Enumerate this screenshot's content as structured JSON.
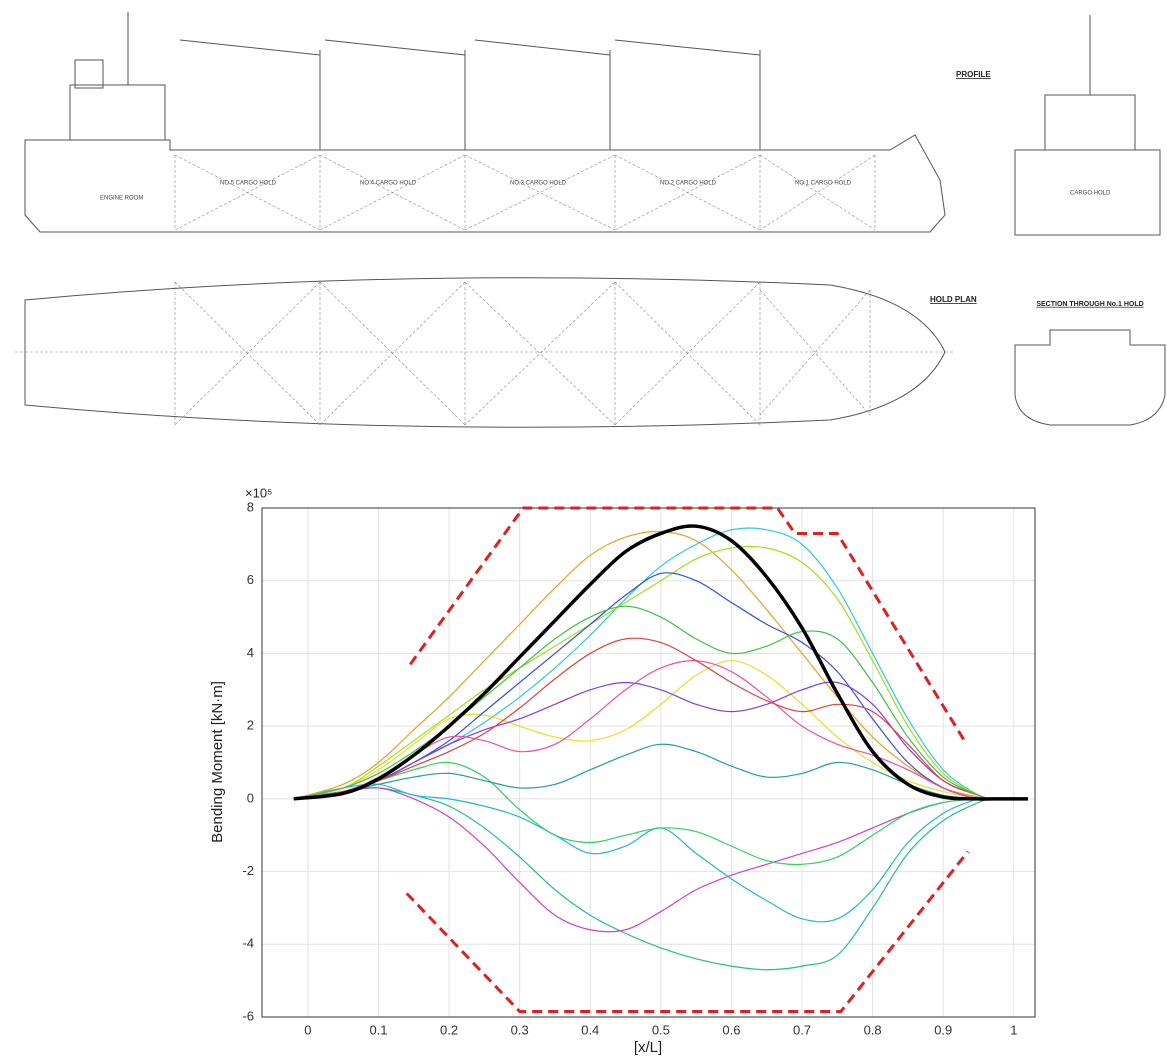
{
  "drawing": {
    "profile_title": "PROFILE",
    "hold_plan_title": "HOLD PLAN",
    "section_title": "SECTION THROUGH No.1 HOLD",
    "profile_labels": [
      "ENGINE ROOM",
      "NO.5 CARGO HOLD",
      "NO.4 CARGO HOLD",
      "NO.3 CARGO HOLD",
      "NO.2 CARGO HOLD",
      "NO.1 CARGO HOLD"
    ],
    "section_label": "CARGO HOLD"
  },
  "chart_data": {
    "type": "line",
    "x_label": "[x/L]",
    "y_label": "Bending Moment [kN·m]",
    "y_multiplier": "×10⁵",
    "xlim": [
      -0.065,
      1.03
    ],
    "ylim": [
      -6,
      8
    ],
    "xticks": [
      0,
      0.1,
      0.2,
      0.3,
      0.4,
      0.5,
      0.6,
      0.7,
      0.8,
      0.9,
      1
    ],
    "yticks": [
      -6,
      -4,
      -2,
      0,
      2,
      4,
      6,
      8
    ],
    "grid": true,
    "x": [
      -0.02,
      0.05,
      0.1,
      0.15,
      0.2,
      0.25,
      0.3,
      0.35,
      0.4,
      0.45,
      0.5,
      0.55,
      0.6,
      0.65,
      0.7,
      0.75,
      0.8,
      0.85,
      0.9,
      0.95,
      0.97,
      1.02
    ],
    "series": [
      {
        "color": "#22c08a",
        "values": [
          0,
          0.2,
          0.3,
          0.1,
          -0.2,
          -0.8,
          -1.6,
          -2.5,
          -3.2,
          -3.7,
          -4.1,
          -4.4,
          -4.6,
          -4.7,
          -4.6,
          -4.3,
          -3.0,
          -1.5,
          -0.6,
          -0.1,
          0,
          0
        ]
      },
      {
        "color": "#d040d0",
        "values": [
          0,
          0.2,
          0.3,
          0,
          -0.5,
          -1.3,
          -2.3,
          -3.2,
          -3.6,
          -3.6,
          -3.1,
          -2.5,
          -2.1,
          -1.8,
          -1.5,
          -1.2,
          -0.8,
          -0.4,
          -0.1,
          0,
          0,
          0
        ]
      },
      {
        "color": "#20b8d8",
        "values": [
          0,
          0.3,
          0.4,
          0.1,
          0,
          -0.2,
          -0.5,
          -1.0,
          -1.5,
          -1.3,
          -0.8,
          -1.5,
          -2.2,
          -2.8,
          -3.3,
          -3.3,
          -2.5,
          -1.2,
          -0.4,
          0,
          0,
          0
        ]
      },
      {
        "color": "#30d060",
        "values": [
          0,
          0.2,
          0.5,
          0.8,
          1.0,
          0.6,
          -0.3,
          -1.0,
          -1.2,
          -1.0,
          -0.8,
          -0.9,
          -1.3,
          -1.7,
          -1.8,
          -1.6,
          -1.0,
          -0.4,
          -0.1,
          0,
          0,
          0
        ]
      },
      {
        "color": "#f0a020",
        "values": [
          0,
          0.4,
          1.0,
          1.9,
          2.8,
          3.8,
          4.8,
          5.8,
          6.7,
          7.2,
          7.35,
          7.1,
          6.3,
          5.2,
          4.0,
          2.8,
          1.7,
          0.9,
          0.3,
          0.05,
          0,
          0
        ]
      },
      {
        "color": "#30c8e0",
        "values": [
          0,
          0.2,
          0.5,
          1.0,
          1.5,
          2.1,
          2.8,
          3.6,
          4.5,
          5.5,
          6.4,
          7.0,
          7.4,
          7.4,
          7.0,
          5.8,
          4.0,
          2.2,
          0.8,
          0.1,
          0,
          0
        ]
      },
      {
        "color": "#a0e020",
        "values": [
          0,
          0.3,
          0.9,
          1.6,
          2.3,
          3.0,
          3.6,
          4.2,
          4.8,
          5.4,
          6.0,
          6.6,
          6.9,
          6.9,
          6.5,
          5.5,
          3.8,
          2.0,
          0.7,
          0.1,
          0,
          0
        ]
      },
      {
        "color": "#e8e020",
        "values": [
          0,
          0.3,
          0.8,
          1.5,
          2.2,
          2.3,
          2.0,
          1.7,
          1.6,
          1.9,
          2.6,
          3.4,
          3.8,
          3.4,
          2.6,
          1.7,
          1.0,
          0.5,
          0.2,
          0,
          0,
          0
        ]
      },
      {
        "color": "#3050e0",
        "values": [
          0,
          0.2,
          0.5,
          1.0,
          1.6,
          2.4,
          3.2,
          4.0,
          4.8,
          5.6,
          6.2,
          6.0,
          5.4,
          4.8,
          4.3,
          3.5,
          2.2,
          1.0,
          0.3,
          0,
          0,
          0
        ]
      },
      {
        "color": "#8040e0",
        "values": [
          0,
          0.2,
          0.5,
          1.0,
          1.5,
          1.9,
          2.2,
          2.6,
          3.0,
          3.2,
          3.0,
          2.6,
          2.4,
          2.6,
          3.0,
          3.2,
          2.6,
          1.4,
          0.5,
          0.1,
          0,
          0
        ]
      },
      {
        "color": "#f050a0",
        "values": [
          0,
          0.2,
          0.6,
          1.2,
          1.7,
          1.6,
          1.3,
          1.5,
          2.2,
          3.0,
          3.6,
          3.8,
          3.5,
          2.8,
          2.0,
          1.5,
          1.2,
          0.8,
          0.3,
          0,
          0,
          0
        ]
      },
      {
        "color": "#20a0a0",
        "values": [
          0,
          0.2,
          0.4,
          0.6,
          0.7,
          0.5,
          0.3,
          0.4,
          0.8,
          1.2,
          1.5,
          1.3,
          0.9,
          0.6,
          0.7,
          1.0,
          0.8,
          0.4,
          0.1,
          0,
          0,
          0
        ]
      },
      {
        "color": "#e04040",
        "values": [
          0,
          0.2,
          0.5,
          0.9,
          1.3,
          1.8,
          2.5,
          3.3,
          4.0,
          4.4,
          4.3,
          3.8,
          3.2,
          2.7,
          2.4,
          2.6,
          2.4,
          1.5,
          0.5,
          0.1,
          0,
          0
        ]
      },
      {
        "color": "#40c040",
        "values": [
          0,
          0.3,
          0.7,
          1.3,
          2.0,
          2.8,
          3.6,
          4.4,
          5.0,
          5.3,
          5.0,
          4.4,
          4.0,
          4.2,
          4.6,
          4.4,
          3.2,
          1.7,
          0.6,
          0.1,
          0,
          0
        ]
      },
      {
        "color": "#000000",
        "width": 3.5,
        "values": [
          0,
          0.15,
          0.55,
          1.2,
          2.0,
          2.9,
          3.9,
          4.9,
          5.9,
          6.8,
          7.3,
          7.5,
          7.1,
          6.1,
          4.7,
          2.9,
          1.3,
          0.4,
          0.05,
          0,
          0,
          0
        ]
      },
      {
        "color": "#e02020",
        "style": "dashed",
        "width": 3,
        "x": [
          0.145,
          0.305,
          0.665,
          0.69,
          0.75,
          0.93
        ],
        "values": [
          3.7,
          8,
          8,
          7.3,
          7.3,
          1.6
        ]
      },
      {
        "color": "#e02020",
        "style": "dashed",
        "width": 3,
        "x": [
          0.14,
          0.3,
          0.755,
          0.935
        ],
        "values": [
          -2.6,
          -5.85,
          -5.85,
          -1.45
        ]
      }
    ]
  }
}
